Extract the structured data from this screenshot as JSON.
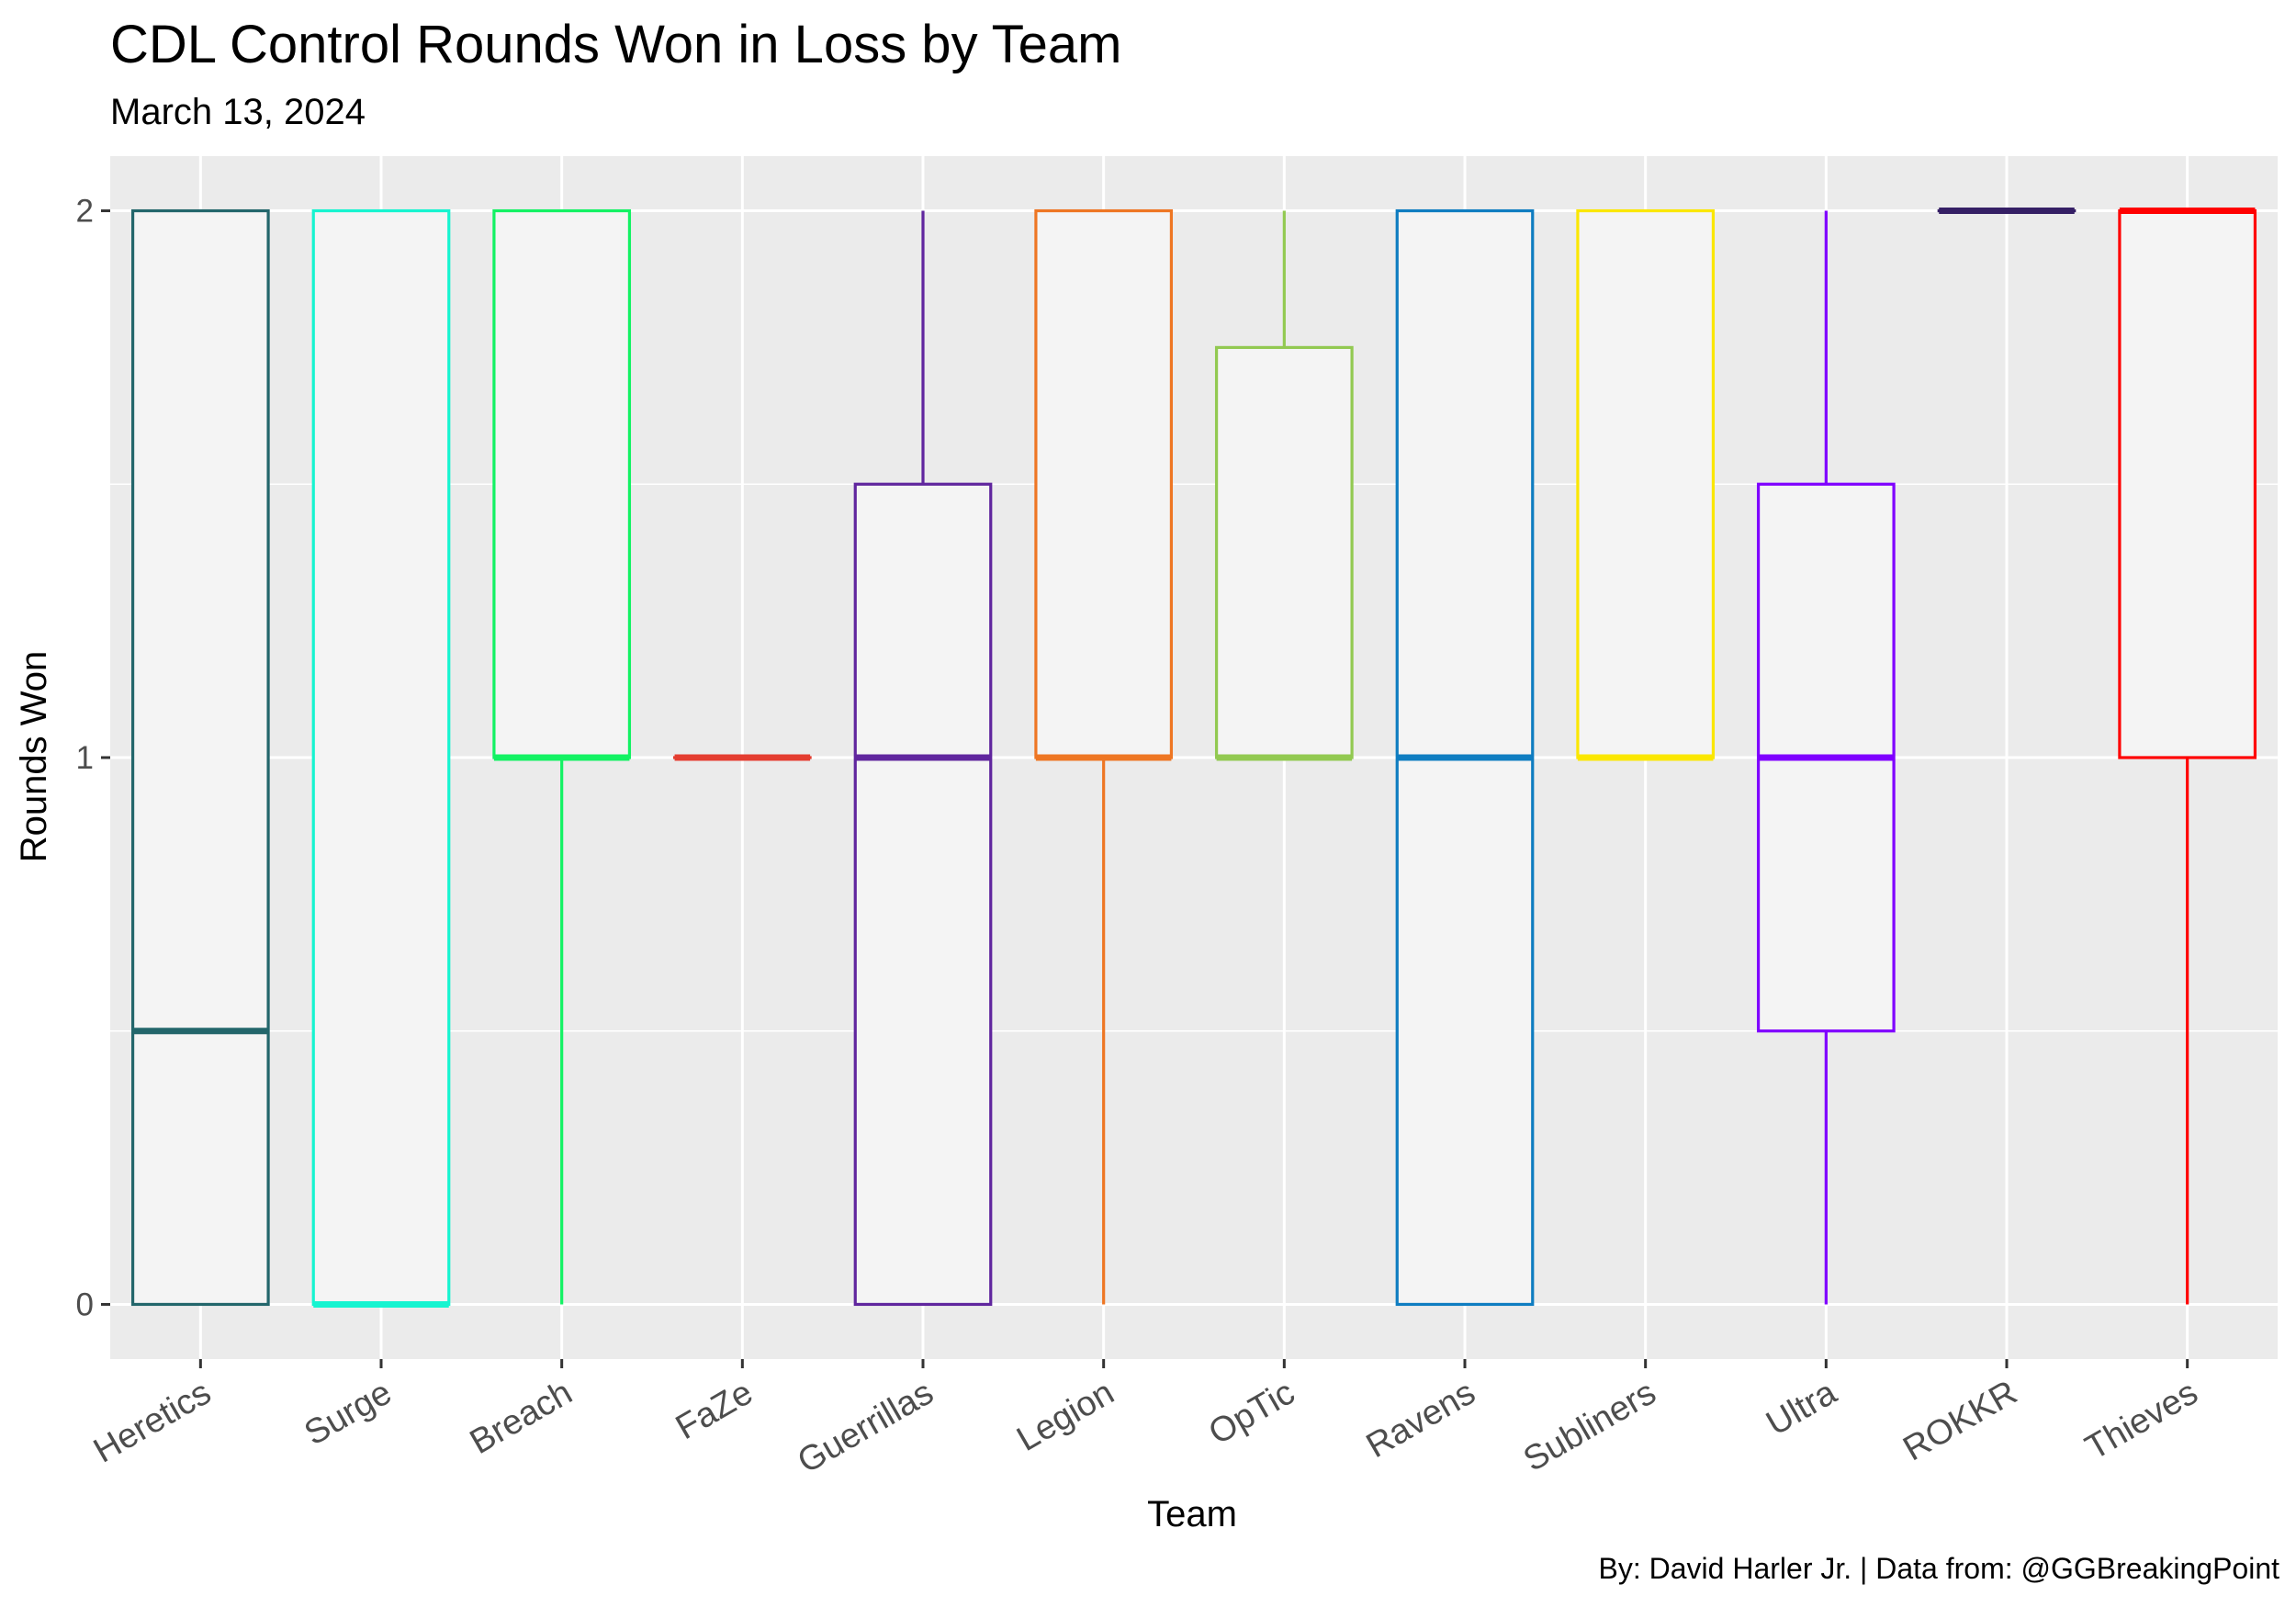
{
  "chart_data": {
    "type": "boxplot",
    "title": "CDL Control Rounds Won in Loss by Team",
    "subtitle": "March 13, 2024",
    "caption": "By: David Harler Jr. | Data from: @GGBreakingPoint",
    "xlabel": "Team",
    "ylabel": "Rounds Won",
    "ylim": [
      -0.1,
      2.1
    ],
    "y_ticks": [
      0,
      1,
      2
    ],
    "y_tick_labels": [
      "0",
      "1",
      "2"
    ],
    "grid": true,
    "legend": "none",
    "categories": [
      "Heretics",
      "Surge",
      "Breach",
      "FaZe",
      "Guerrillas",
      "Legion",
      "OpTic",
      "Ravens",
      "Subliners",
      "Ultra",
      "ROKKR",
      "Thieves"
    ],
    "boxes": [
      {
        "team": "Heretics",
        "min": 0,
        "q1": 0,
        "median": 0.5,
        "q3": 2,
        "max": 2,
        "color": "#23666b"
      },
      {
        "team": "Surge",
        "min": 0,
        "q1": 0,
        "median": 0,
        "q3": 2,
        "max": 2,
        "color": "#16f4d0"
      },
      {
        "team": "Breach",
        "min": 0,
        "q1": 1,
        "median": 1,
        "q3": 2,
        "max": 2,
        "color": "#13f263"
      },
      {
        "team": "FaZe",
        "min": 1,
        "q1": 1,
        "median": 1,
        "q3": 1,
        "max": 1,
        "color": "#e43d30"
      },
      {
        "team": "Guerrillas",
        "min": 0,
        "q1": 0,
        "median": 1,
        "q3": 1.5,
        "max": 2,
        "color": "#60269e"
      },
      {
        "team": "Legion",
        "min": 0,
        "q1": 1,
        "median": 1,
        "q3": 2,
        "max": 2,
        "color": "#ee7623"
      },
      {
        "team": "OpTic",
        "min": 1,
        "q1": 1,
        "median": 1,
        "q3": 1.75,
        "max": 2,
        "color": "#92c951"
      },
      {
        "team": "Ravens",
        "min": 0,
        "q1": 0,
        "median": 1,
        "q3": 2,
        "max": 2,
        "color": "#0f7dc1"
      },
      {
        "team": "Subliners",
        "min": 1,
        "q1": 1,
        "median": 1,
        "q3": 2,
        "max": 2,
        "color": "#fbe700"
      },
      {
        "team": "Ultra",
        "min": 0,
        "q1": 0.5,
        "median": 1,
        "q3": 1.5,
        "max": 2,
        "color": "#7f00ff"
      },
      {
        "team": "ROKKR",
        "min": 2,
        "q1": 2,
        "median": 2,
        "q3": 2,
        "max": 2,
        "color": "#351f65"
      },
      {
        "team": "Thieves",
        "min": 0,
        "q1": 1,
        "median": 2,
        "q3": 2,
        "max": 2,
        "color": "#ff0000"
      }
    ],
    "box_fill": "#f4f4f4",
    "panel_background": "#ebebeb"
  }
}
